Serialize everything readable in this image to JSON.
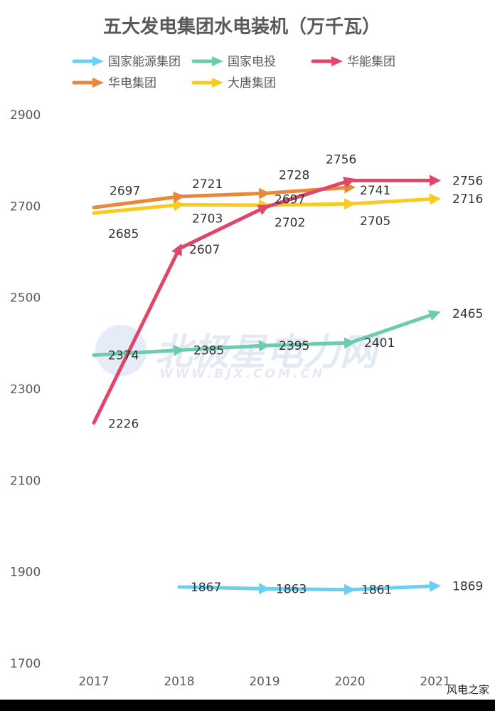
{
  "chart_data": {
    "type": "line",
    "title": "五大发电集团水电装机（万千瓦）",
    "xlabel": "",
    "ylabel": "",
    "categories": [
      "2017",
      "2018",
      "2019",
      "2020",
      "2021"
    ],
    "ylim": [
      1700,
      2900
    ],
    "yticks": [
      "2900",
      "2700",
      "2500",
      "2300",
      "2100",
      "1900",
      "1700"
    ],
    "grid": false,
    "legend_position": "top",
    "series": [
      {
        "name": "国家能源集团",
        "color": "#6dcff0",
        "values": [
          null,
          1867,
          1863,
          1861,
          1869
        ]
      },
      {
        "name": "国家电投",
        "color": "#6dcbb0",
        "values": [
          2374,
          2385,
          2395,
          2401,
          2465
        ]
      },
      {
        "name": "华能集团",
        "color": "#e0466a",
        "values": [
          2226,
          2607,
          2697,
          2756,
          2756
        ]
      },
      {
        "name": "华电集团",
        "color": "#e8883a",
        "values": [
          2697,
          2721,
          2728,
          2741,
          null
        ]
      },
      {
        "name": "大唐集团",
        "color": "#f7cb22",
        "values": [
          2685,
          2703,
          2702,
          2705,
          2716
        ]
      }
    ],
    "data_labels": [
      {
        "series": 0,
        "index": 1,
        "text": "1867"
      },
      {
        "series": 0,
        "index": 2,
        "text": "1863"
      },
      {
        "series": 0,
        "index": 3,
        "text": "1861"
      },
      {
        "series": 0,
        "index": 4,
        "text": "1869"
      },
      {
        "series": 1,
        "index": 0,
        "text": "2374"
      },
      {
        "series": 1,
        "index": 1,
        "text": "2385"
      },
      {
        "series": 1,
        "index": 2,
        "text": "2395"
      },
      {
        "series": 1,
        "index": 3,
        "text": "2401"
      },
      {
        "series": 1,
        "index": 4,
        "text": "2465"
      },
      {
        "series": 2,
        "index": 0,
        "text": "2226"
      },
      {
        "series": 2,
        "index": 1,
        "text": "2607"
      },
      {
        "series": 2,
        "index": 2,
        "text": "2697"
      },
      {
        "series": 2,
        "index": 3,
        "text": "2756"
      },
      {
        "series": 2,
        "index": 4,
        "text": "2756"
      },
      {
        "series": 3,
        "index": 0,
        "text": "2697"
      },
      {
        "series": 3,
        "index": 1,
        "text": "2721"
      },
      {
        "series": 3,
        "index": 2,
        "text": "2728"
      },
      {
        "series": 3,
        "index": 3,
        "text": "2741"
      },
      {
        "series": 4,
        "index": 0,
        "text": "2685"
      },
      {
        "series": 4,
        "index": 1,
        "text": "2703"
      },
      {
        "series": 4,
        "index": 2,
        "text": "2702"
      },
      {
        "series": 4,
        "index": 3,
        "text": "2705"
      },
      {
        "series": 4,
        "index": 4,
        "text": "2716"
      }
    ],
    "watermark": {
      "main": "北极星电力网",
      "sub": "WWW.BJX.COM.CN"
    }
  },
  "source_label": "风电之家"
}
